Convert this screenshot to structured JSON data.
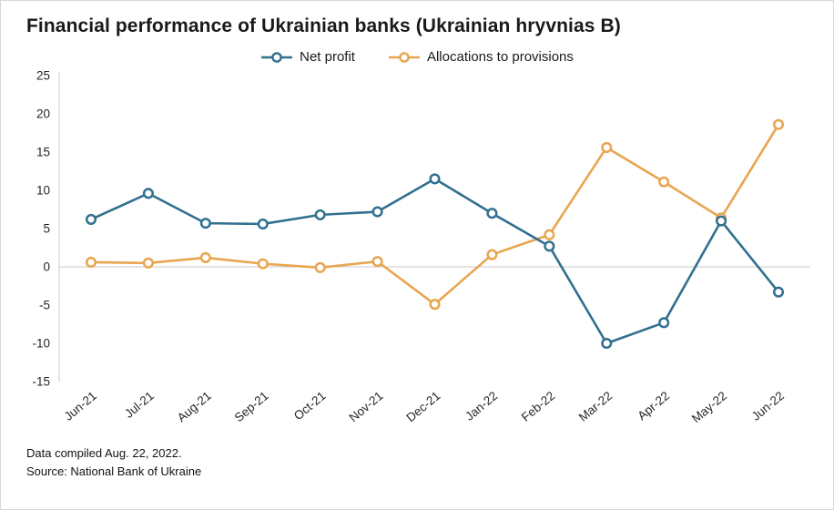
{
  "header": {
    "title": "Financial performance of Ukrainian banks (Ukrainian hryvnias B)"
  },
  "legend": {
    "items": [
      {
        "label": "Net profit",
        "color": "#31708f"
      },
      {
        "label": "Allocations to provisions",
        "color": "#e8a54f"
      }
    ]
  },
  "footer": {
    "line1": "Data compiled Aug. 22, 2022.",
    "line2": "Source: National Bank of Ukraine"
  },
  "chart_data": {
    "type": "line",
    "title": "Financial performance of Ukrainian banks (Ukrainian hryvnias B)",
    "xlabel": "",
    "ylabel": "",
    "ylim": [
      -15,
      25
    ],
    "ytick_step": 5,
    "grid": "zero-line-only",
    "legend_position": "top-center",
    "categories": [
      "Jun-21",
      "Jul-21",
      "Aug-21",
      "Sep-21",
      "Oct-21",
      "Nov-21",
      "Dec-21",
      "Jan-22",
      "Feb-22",
      "Mar-22",
      "Apr-22",
      "May-22",
      "Jun-22"
    ],
    "series": [
      {
        "name": "Net profit",
        "color": "#31708f",
        "values": [
          6.2,
          9.6,
          5.7,
          5.6,
          6.8,
          7.2,
          11.5,
          7.0,
          2.7,
          -10.0,
          -7.3,
          6.0,
          -3.3
        ]
      },
      {
        "name": "Allocations to provisions",
        "color": "#e8a54f",
        "values": [
          0.6,
          0.5,
          1.2,
          0.4,
          -0.1,
          0.7,
          -4.9,
          1.6,
          4.2,
          15.6,
          11.1,
          6.4,
          18.6
        ]
      }
    ]
  }
}
